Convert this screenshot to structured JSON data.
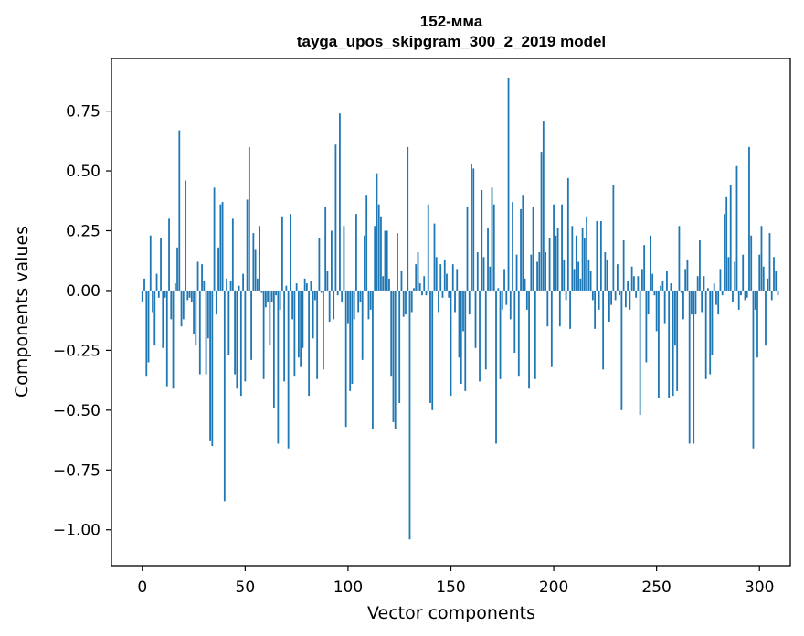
{
  "chart_data": {
    "type": "bar",
    "title": "152-мма",
    "subtitle": "tayga_upos_skipgram_300_2_2019 model",
    "xlabel": "Vector components",
    "ylabel": "Components values",
    "xlim": [
      -15,
      315
    ],
    "ylim": [
      -1.15,
      0.97
    ],
    "xticks": [
      0,
      50,
      100,
      150,
      200,
      250,
      300
    ],
    "xtick_labels": [
      "0",
      "50",
      "100",
      "150",
      "200",
      "250",
      "300"
    ],
    "yticks": [
      -1.0,
      -0.75,
      -0.5,
      -0.25,
      0.0,
      0.25,
      0.5,
      0.75
    ],
    "ytick_labels": [
      "−1.00",
      "−0.75",
      "−0.50",
      "−0.25",
      "0.00",
      "0.25",
      "0.50",
      "0.75"
    ],
    "grid": false,
    "bar_color": "#1f77b4",
    "values": [
      -0.05,
      0.05,
      -0.36,
      -0.3,
      0.23,
      -0.09,
      -0.23,
      0.07,
      -0.03,
      0.22,
      -0.24,
      -0.03,
      -0.4,
      0.3,
      -0.12,
      -0.41,
      0.03,
      0.18,
      0.67,
      -0.15,
      -0.12,
      0.46,
      -0.04,
      -0.03,
      -0.05,
      -0.18,
      -0.23,
      0.12,
      -0.35,
      0.11,
      0.04,
      -0.35,
      -0.2,
      -0.63,
      -0.65,
      0.43,
      -0.1,
      0.18,
      0.36,
      0.37,
      -0.88,
      0.05,
      -0.27,
      0.04,
      0.3,
      -0.35,
      -0.41,
      0.02,
      -0.44,
      0.07,
      -0.38,
      0.38,
      0.6,
      -0.29,
      0.24,
      0.17,
      0.05,
      0.27,
      -0.01,
      -0.37,
      -0.07,
      -0.05,
      -0.23,
      -0.05,
      -0.49,
      -0.02,
      -0.64,
      -0.08,
      0.31,
      -0.38,
      0.02,
      -0.66,
      0.32,
      -0.12,
      -0.36,
      0.03,
      -0.28,
      -0.32,
      -0.24,
      0.05,
      0.03,
      -0.44,
      0.04,
      -0.2,
      -0.04,
      -0.37,
      0.22,
      -0.01,
      -0.33,
      0.35,
      0.08,
      -0.13,
      0.25,
      -0.12,
      0.61,
      -0.02,
      0.74,
      -0.05,
      0.27,
      -0.57,
      -0.14,
      -0.42,
      -0.39,
      -0.12,
      0.32,
      -0.09,
      -0.05,
      -0.29,
      0.23,
      0.4,
      -0.12,
      -0.08,
      -0.58,
      0.27,
      0.49,
      0.36,
      0.31,
      0.06,
      0.25,
      0.25,
      0.05,
      -0.36,
      -0.55,
      -0.58,
      0.24,
      -0.47,
      0.08,
      -0.11,
      -0.1,
      0.6,
      -1.04,
      -0.09,
      0.01,
      0.11,
      0.16,
      0.03,
      -0.02,
      0.06,
      -0.02,
      0.36,
      -0.47,
      -0.5,
      0.28,
      0.14,
      -0.09,
      0.11,
      -0.03,
      0.13,
      0.07,
      -0.03,
      -0.44,
      0.11,
      -0.09,
      0.09,
      -0.28,
      -0.39,
      -0.17,
      -0.42,
      0.35,
      -0.1,
      0.53,
      0.51,
      -0.24,
      0.16,
      -0.38,
      0.42,
      0.14,
      -0.33,
      0.26,
      0.1,
      0.43,
      0.36,
      -0.64,
      0.01,
      -0.37,
      -0.08,
      0.09,
      -0.06,
      0.89,
      -0.12,
      0.37,
      -0.26,
      0.15,
      -0.36,
      0.34,
      0.4,
      0.05,
      -0.08,
      -0.41,
      0.15,
      0.35,
      -0.37,
      0.12,
      0.16,
      0.58,
      0.71,
      0.16,
      -0.15,
      0.22,
      -0.32,
      0.36,
      0.23,
      0.26,
      -0.15,
      0.36,
      0.13,
      -0.04,
      0.47,
      -0.16,
      0.27,
      0.09,
      0.23,
      0.12,
      0.05,
      0.26,
      0.22,
      0.31,
      0.13,
      0.08,
      -0.04,
      -0.16,
      0.29,
      -0.08,
      0.29,
      -0.33,
      0.16,
      0.13,
      -0.13,
      -0.06,
      0.44,
      -0.04,
      0.11,
      -0.02,
      -0.5,
      0.21,
      -0.07,
      0.04,
      -0.08,
      0.1,
      0.06,
      -0.03,
      0.06,
      -0.52,
      0.09,
      0.19,
      -0.3,
      -0.1,
      0.23,
      0.07,
      -0.02,
      -0.17,
      -0.45,
      0.02,
      0.04,
      -0.14,
      0.08,
      -0.45,
      0.03,
      -0.44,
      -0.23,
      -0.42,
      0.27,
      -0.01,
      -0.12,
      0.09,
      0.13,
      -0.64,
      -0.1,
      -0.64,
      -0.1,
      0.06,
      0.21,
      -0.09,
      0.06,
      -0.37,
      0.01,
      -0.35,
      -0.27,
      0.03,
      -0.06,
      -0.1,
      0.09,
      -0.02,
      0.32,
      0.39,
      0.14,
      0.44,
      -0.05,
      0.12,
      0.52,
      -0.08,
      -0.02,
      0.15,
      -0.04,
      -0.03,
      0.6,
      0.23,
      -0.66,
      -0.08,
      -0.28,
      0.15,
      0.27,
      0.1,
      -0.23,
      0.05,
      0.24,
      -0.04,
      0.14,
      0.08,
      -0.02
    ]
  }
}
